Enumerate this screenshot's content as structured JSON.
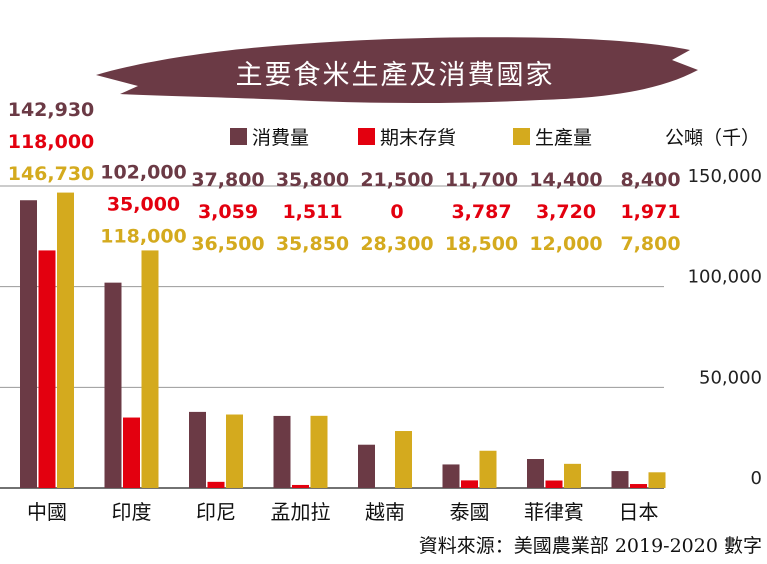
{
  "chart_data": {
    "type": "bar",
    "title": "主要食米生產及消費國家",
    "unit_label": "公噸（千）",
    "source": "資料來源：美國農業部 2019-2020 數字",
    "categories": [
      "中國",
      "印度",
      "印尼",
      "孟加拉",
      "越南",
      "泰國",
      "菲律賓",
      "日本"
    ],
    "series": [
      {
        "name": "消費量",
        "color": "#6b3a45",
        "values": [
          142930,
          102000,
          37800,
          35800,
          21500,
          11700,
          14400,
          8400
        ],
        "labels": [
          "142,930",
          "102,000",
          "37,800",
          "35,800",
          "21,500",
          "11,700",
          "14,400",
          "8,400"
        ]
      },
      {
        "name": "期末存貨",
        "color": "#e3000f",
        "values": [
          118000,
          35000,
          3059,
          1511,
          0,
          3787,
          3720,
          1971
        ],
        "labels": [
          "118,000",
          "35,000",
          "3,059",
          "1,511",
          "0",
          "3,787",
          "3,720",
          "1,971"
        ]
      },
      {
        "name": "生產量",
        "color": "#d4aa1e",
        "values": [
          146730,
          118000,
          36500,
          35850,
          28300,
          18500,
          12000,
          7800
        ],
        "labels": [
          "146,730",
          "118,000",
          "36,500",
          "35,850",
          "28,300",
          "18,500",
          "12,000",
          "7,800"
        ]
      }
    ],
    "y_ticks": [
      0,
      50000,
      100000,
      150000
    ],
    "y_tick_labels": [
      "0",
      "50,000",
      "100,000",
      "150,000"
    ],
    "ylim": [
      0,
      150000
    ],
    "grid": true,
    "legend": "top"
  }
}
